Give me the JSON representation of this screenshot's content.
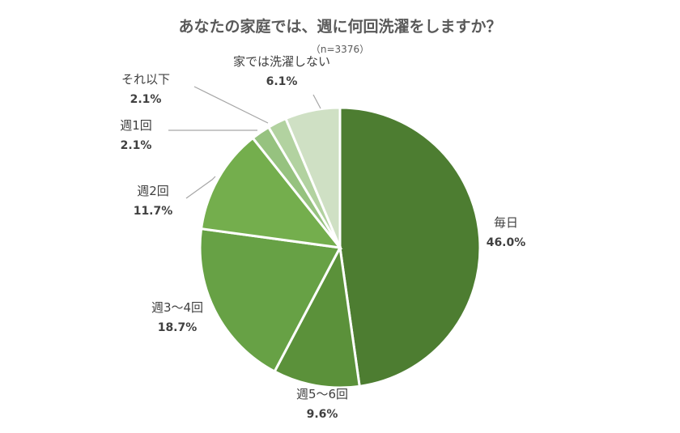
{
  "chart_data": {
    "type": "pie",
    "title": "あなたの家庭では、週に何回洗濯をしますか？",
    "subtitle": "（n=3376）",
    "start_angle_deg": 0,
    "direction": "clockwise",
    "slices": [
      {
        "label": "毎日",
        "value": 46.0,
        "value_label": "46.0%",
        "color": "#4d7d31"
      },
      {
        "label": "週5～6回",
        "value": 9.6,
        "value_label": "9.6%",
        "color": "#5b913a"
      },
      {
        "label": "週3～4回",
        "value": 18.7,
        "value_label": "18.7%",
        "color": "#67a145"
      },
      {
        "label": "週2回",
        "value": 11.7,
        "value_label": "11.7%",
        "color": "#74ae4d"
      },
      {
        "label": "週1回",
        "value": 2.1,
        "value_label": "2.1%",
        "color": "#96c27f"
      },
      {
        "label": "それ以下",
        "value": 2.1,
        "value_label": "2.1%",
        "color": "#b2d2a0"
      },
      {
        "label": "家では洗濯しない",
        "value": 6.1,
        "value_label": "6.1%",
        "color": "#cfe0c4"
      }
    ],
    "legend": "none",
    "data_labels": "outside"
  }
}
